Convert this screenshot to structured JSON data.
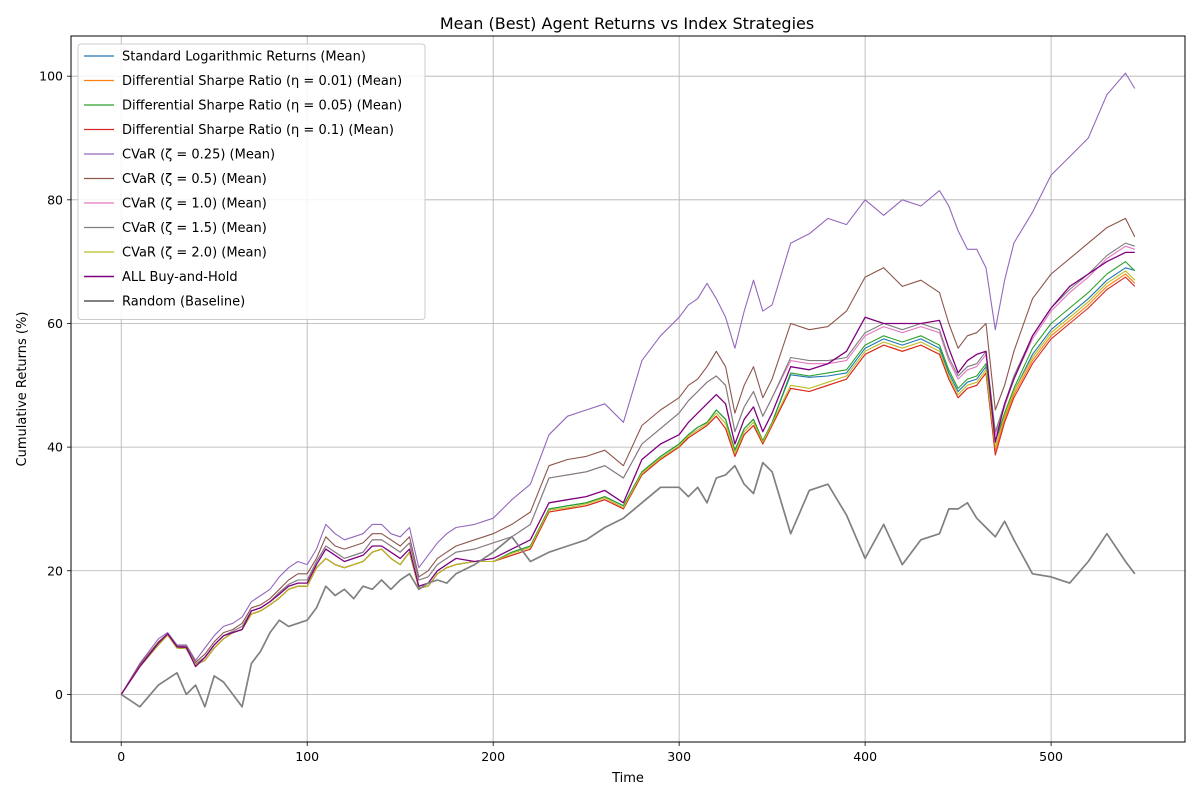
{
  "chart_data": {
    "type": "line",
    "title": "Mean (Best) Agent Returns vs Index Strategies",
    "xlabel": "Time",
    "ylabel": "Cumulative Returns (%)",
    "xlim": [
      -27,
      572
    ],
    "ylim": [
      -7.7,
      106.5
    ],
    "xticks": [
      0,
      100,
      200,
      300,
      400,
      500
    ],
    "yticks": [
      0,
      20,
      40,
      60,
      80,
      100
    ],
    "grid": true,
    "legend_position": "upper-left",
    "x": [
      0,
      10,
      20,
      25,
      30,
      35,
      40,
      45,
      50,
      55,
      60,
      65,
      70,
      75,
      80,
      85,
      90,
      95,
      100,
      105,
      110,
      115,
      120,
      125,
      130,
      135,
      140,
      145,
      150,
      155,
      160,
      165,
      170,
      175,
      180,
      190,
      200,
      210,
      220,
      230,
      240,
      250,
      260,
      270,
      280,
      290,
      300,
      305,
      310,
      315,
      320,
      325,
      330,
      335,
      340,
      345,
      350,
      360,
      370,
      380,
      390,
      400,
      410,
      420,
      430,
      440,
      445,
      450,
      455,
      460,
      465,
      470,
      475,
      480,
      490,
      500,
      510,
      520,
      530,
      540,
      545
    ],
    "series": [
      {
        "name": "Standard Logarithmic Returns (Mean)",
        "color": "#1f77b4",
        "linewidth": 1.1,
        "values": [
          0,
          4.5,
          8,
          9.6,
          7.5,
          7.4,
          4.8,
          5.5,
          7.5,
          9,
          10,
          10.5,
          13,
          13.5,
          14.5,
          15.6,
          17,
          17.5,
          17.5,
          20.5,
          22,
          21,
          20.5,
          21,
          21.5,
          23,
          23.5,
          22,
          21,
          23,
          17.2,
          17.5,
          19.5,
          20.5,
          21,
          21.5,
          21.5,
          23,
          24,
          30,
          30.5,
          31,
          32,
          30.5,
          36,
          38.5,
          40.5,
          42,
          43.2,
          44,
          46,
          44.5,
          39.5,
          43,
          44.5,
          41,
          44,
          51.7,
          51.3,
          51.5,
          52,
          56,
          57.5,
          56.5,
          57.5,
          56,
          52,
          49,
          50.5,
          51,
          53,
          41,
          45,
          49,
          55,
          59,
          61.5,
          64,
          67,
          69,
          68.6
        ]
      },
      {
        "name": "Differential Sharpe Ratio (η = 0.01) (Mean)",
        "color": "#ff7f0e",
        "linewidth": 1.1,
        "values": [
          0,
          4.5,
          8,
          9.6,
          7.5,
          7.4,
          4.8,
          5.5,
          7.5,
          9,
          10,
          10.5,
          13,
          13.5,
          14.5,
          15.6,
          17,
          17.5,
          17.5,
          20.5,
          22,
          21,
          20.5,
          21,
          21.5,
          23,
          23.5,
          22,
          21,
          23,
          17.2,
          17.5,
          19.5,
          20.5,
          21,
          21.5,
          21.5,
          22.5,
          23.5,
          29.5,
          30,
          30.5,
          31.5,
          30,
          35.5,
          38,
          40,
          41.5,
          42.5,
          43.5,
          45,
          43,
          38.5,
          42,
          43.5,
          40.5,
          43.5,
          49.5,
          49,
          50,
          51,
          55,
          56.5,
          55.5,
          56.5,
          55,
          51,
          48,
          49.5,
          50,
          52,
          39.3,
          44.5,
          48.5,
          54,
          58,
          60.5,
          63,
          66,
          68,
          66.5
        ]
      },
      {
        "name": "Differential Sharpe Ratio (η = 0.05) (Mean)",
        "color": "#2ca02c",
        "linewidth": 1.1,
        "values": [
          0,
          4.5,
          8,
          9.6,
          7.5,
          7.4,
          4.8,
          5.5,
          7.5,
          9,
          10,
          10.5,
          13,
          13.5,
          14.5,
          15.6,
          17,
          17.5,
          17.5,
          20.5,
          22,
          21,
          20.5,
          21,
          21.5,
          23,
          23.5,
          22,
          21,
          23,
          17.2,
          17.5,
          19.5,
          20.5,
          21,
          21.5,
          21.5,
          23,
          24,
          30,
          30.5,
          31,
          32,
          30.5,
          36,
          38.5,
          40.5,
          42,
          43.2,
          44,
          46,
          44.5,
          39.5,
          43,
          44.5,
          41,
          44,
          52,
          51.5,
          52,
          52.5,
          56.5,
          58,
          57,
          58,
          56.5,
          52.5,
          49.5,
          51,
          51.5,
          53.5,
          41,
          45.5,
          49.5,
          56,
          60,
          62.5,
          65,
          68,
          70,
          68.5
        ]
      },
      {
        "name": "Differential Sharpe Ratio (η = 0.1) (Mean)",
        "color": "#d62728",
        "linewidth": 1.1,
        "values": [
          0,
          4.5,
          8,
          9.6,
          7.5,
          7.4,
          4.8,
          5.5,
          7.5,
          9,
          10,
          10.5,
          13,
          13.5,
          14.5,
          15.6,
          17,
          17.5,
          17.5,
          20.5,
          22,
          21,
          20.5,
          21,
          21.5,
          23,
          23.5,
          22,
          21,
          23,
          17.2,
          17.5,
          19.5,
          20.5,
          21,
          21.5,
          21.5,
          22.5,
          23.5,
          29.5,
          30,
          30.5,
          31.5,
          30,
          35.5,
          38,
          40,
          41.5,
          42.5,
          43.5,
          45,
          43,
          38.5,
          42,
          43.5,
          40.5,
          43.5,
          49.5,
          49,
          50,
          51,
          55,
          56.5,
          55.5,
          56.5,
          55,
          51,
          48,
          49.5,
          50,
          52,
          38.7,
          44,
          48,
          53.5,
          57.5,
          60,
          62.5,
          65.5,
          67.5,
          66
        ]
      },
      {
        "name": "CVaR (ζ = 0.25) (Mean)",
        "color": "#9467bd",
        "linewidth": 1.1,
        "values": [
          0,
          5,
          9,
          10,
          8,
          8,
          5.5,
          7.5,
          9.5,
          11,
          11.5,
          12.5,
          15,
          16,
          17,
          19,
          20.5,
          21.5,
          21,
          23.5,
          27.5,
          26,
          25,
          25.5,
          26,
          27.5,
          27.5,
          26,
          25.5,
          27,
          20.5,
          22.5,
          24.5,
          26,
          27,
          27.5,
          28.5,
          31.5,
          34,
          42,
          45,
          46,
          47,
          44,
          54,
          58,
          61,
          63,
          64,
          66.5,
          64,
          61,
          56,
          62,
          67,
          62,
          63,
          73,
          74.5,
          77,
          76,
          80,
          77.5,
          80,
          79,
          81.5,
          79,
          75,
          72,
          72,
          69,
          59,
          67,
          73,
          78,
          84,
          87,
          90,
          97,
          100.5,
          98
        ]
      },
      {
        "name": "CVaR (ζ = 0.5) (Mean)",
        "color": "#8c564b",
        "linewidth": 1.1,
        "values": [
          0,
          4.8,
          8.5,
          9.8,
          7.8,
          7.8,
          5.2,
          6.5,
          8.5,
          10,
          10.5,
          11.5,
          14,
          14.5,
          15.5,
          17,
          18.5,
          19.5,
          19.5,
          22,
          25.5,
          24,
          23.5,
          24,
          24.5,
          26,
          26,
          25,
          24,
          25.5,
          19,
          20,
          22,
          23,
          24,
          25,
          26,
          27.5,
          29.5,
          37,
          38,
          38.5,
          39.5,
          37,
          43.5,
          46,
          48,
          50,
          51,
          53,
          55.5,
          53,
          45.5,
          50,
          53,
          48,
          51,
          60,
          59,
          59.5,
          62,
          67.5,
          69,
          66,
          67,
          65,
          60,
          56,
          58,
          58.5,
          60,
          46,
          50,
          55.5,
          64,
          68,
          70.5,
          73,
          75.5,
          77,
          74
        ]
      },
      {
        "name": "CVaR (ζ = 1.0) (Mean)",
        "color": "#e377c2",
        "linewidth": 1.1,
        "values": [
          0,
          4.6,
          8.2,
          9.7,
          7.6,
          7.6,
          4.9,
          6,
          8,
          9.5,
          10.2,
          11,
          13.5,
          14,
          15,
          16.5,
          17.8,
          18.5,
          18.5,
          21.5,
          24,
          23,
          22,
          22.5,
          23,
          25,
          25,
          24,
          23,
          24.5,
          18.5,
          19,
          21,
          22,
          23,
          23.5,
          24.5,
          25.5,
          27.5,
          35,
          35.5,
          36,
          37,
          35,
          40.5,
          43,
          45.5,
          47.5,
          49,
          50.5,
          51.5,
          50,
          42.5,
          46.5,
          49,
          45,
          48,
          54,
          53.5,
          53.5,
          54,
          58,
          59.5,
          58.5,
          59.5,
          58.5,
          54,
          51,
          52.5,
          53,
          55,
          42,
          46.5,
          51,
          57.5,
          62,
          65,
          67.5,
          70.5,
          72.5,
          72
        ]
      },
      {
        "name": "CVaR (ζ = 1.5) (Mean)",
        "color": "#7f7f7f",
        "linewidth": 1.1,
        "values": [
          0,
          4.6,
          8.2,
          9.7,
          7.6,
          7.6,
          4.9,
          6,
          8,
          9.5,
          10.2,
          11,
          13.5,
          14,
          15,
          16.5,
          17.8,
          18.5,
          18.5,
          21.5,
          24,
          23,
          22,
          22.5,
          23,
          25,
          25,
          24,
          23,
          24.5,
          18.5,
          19,
          21,
          22,
          23,
          23.5,
          24.5,
          25.5,
          27.5,
          35,
          35.5,
          36,
          37,
          35,
          40.5,
          43,
          45.5,
          47.5,
          49,
          50.5,
          51.5,
          50,
          42.5,
          46.5,
          49,
          45,
          48,
          54.5,
          54,
          54,
          54.5,
          58.5,
          60,
          59,
          60,
          59,
          54.5,
          51.5,
          53,
          53.5,
          55.5,
          42.5,
          47,
          51.5,
          58,
          62.5,
          65.5,
          68,
          71,
          73,
          72.5
        ]
      },
      {
        "name": "CVaR (ζ = 2.0) (Mean)",
        "color": "#bcbd22",
        "linewidth": 1.1,
        "values": [
          0,
          4.5,
          8,
          9.6,
          7.5,
          7.4,
          4.8,
          5.5,
          7.5,
          9,
          10,
          10.5,
          13,
          13.5,
          14.5,
          15.6,
          17,
          17.5,
          17.5,
          20.5,
          22,
          21,
          20.5,
          21,
          21.5,
          23,
          23.5,
          22,
          21,
          23,
          17.2,
          17.5,
          19.5,
          20.5,
          21,
          21.5,
          21.5,
          22.8,
          23.8,
          29.8,
          30.2,
          30.8,
          31.8,
          30.2,
          35.8,
          38.2,
          40.2,
          41.8,
          42.8,
          43.8,
          45.5,
          43.8,
          39,
          42.5,
          44,
          40.8,
          43.8,
          50,
          49.5,
          50.5,
          51.5,
          55.5,
          57,
          56,
          57,
          55.5,
          51.5,
          48.5,
          50,
          50.5,
          52.5,
          40,
          45,
          49,
          54.5,
          58.5,
          61,
          63.5,
          66.5,
          68.5,
          67
        ]
      },
      {
        "name": "ALL Buy-and-Hold",
        "color": "#800080",
        "linewidth": 1.3,
        "values": [
          0,
          4.5,
          8.3,
          9.8,
          7.7,
          7.6,
          4.5,
          6,
          8,
          9.5,
          10,
          10.5,
          13.5,
          14,
          15,
          16.2,
          17.5,
          18,
          18,
          21,
          23.5,
          22.5,
          21.5,
          22,
          22.5,
          24,
          24,
          23,
          22,
          23.5,
          17.5,
          18,
          20,
          21,
          22,
          21.5,
          22,
          23.5,
          25,
          31,
          31.5,
          32,
          33,
          31,
          38,
          40.5,
          42,
          44,
          45.5,
          47,
          48.5,
          47,
          40.5,
          44.5,
          46.5,
          42.5,
          45.5,
          53,
          52.5,
          53.5,
          55.5,
          61,
          60,
          60,
          60,
          60.5,
          56,
          52,
          54,
          55,
          55.5,
          40.8,
          47,
          51,
          58,
          62.5,
          66,
          68,
          70,
          71.5,
          71.5
        ]
      },
      {
        "name": "Random (Baseline)",
        "color": "#808080",
        "linewidth": 1.7,
        "values": [
          0,
          -2,
          1.5,
          2.5,
          3.5,
          0,
          1.5,
          -2,
          3,
          2,
          0,
          -2,
          5,
          7,
          10,
          12,
          11,
          11.5,
          12,
          14,
          17.5,
          16,
          17,
          15.5,
          17.5,
          17,
          18.5,
          17,
          18.5,
          19.5,
          17,
          18,
          18.5,
          18,
          19.5,
          21,
          23,
          25.5,
          21.5,
          23,
          24,
          25,
          27,
          28.5,
          31,
          33.5,
          33.5,
          32,
          33.5,
          31,
          35,
          35.5,
          37,
          34,
          32.5,
          37.5,
          36,
          26,
          33,
          34,
          29,
          22,
          27.5,
          21,
          25,
          26,
          30,
          30,
          31,
          28.5,
          27,
          25.5,
          28,
          25,
          19.5,
          19,
          18,
          21.5,
          26,
          21.5,
          19.5
        ]
      }
    ]
  }
}
